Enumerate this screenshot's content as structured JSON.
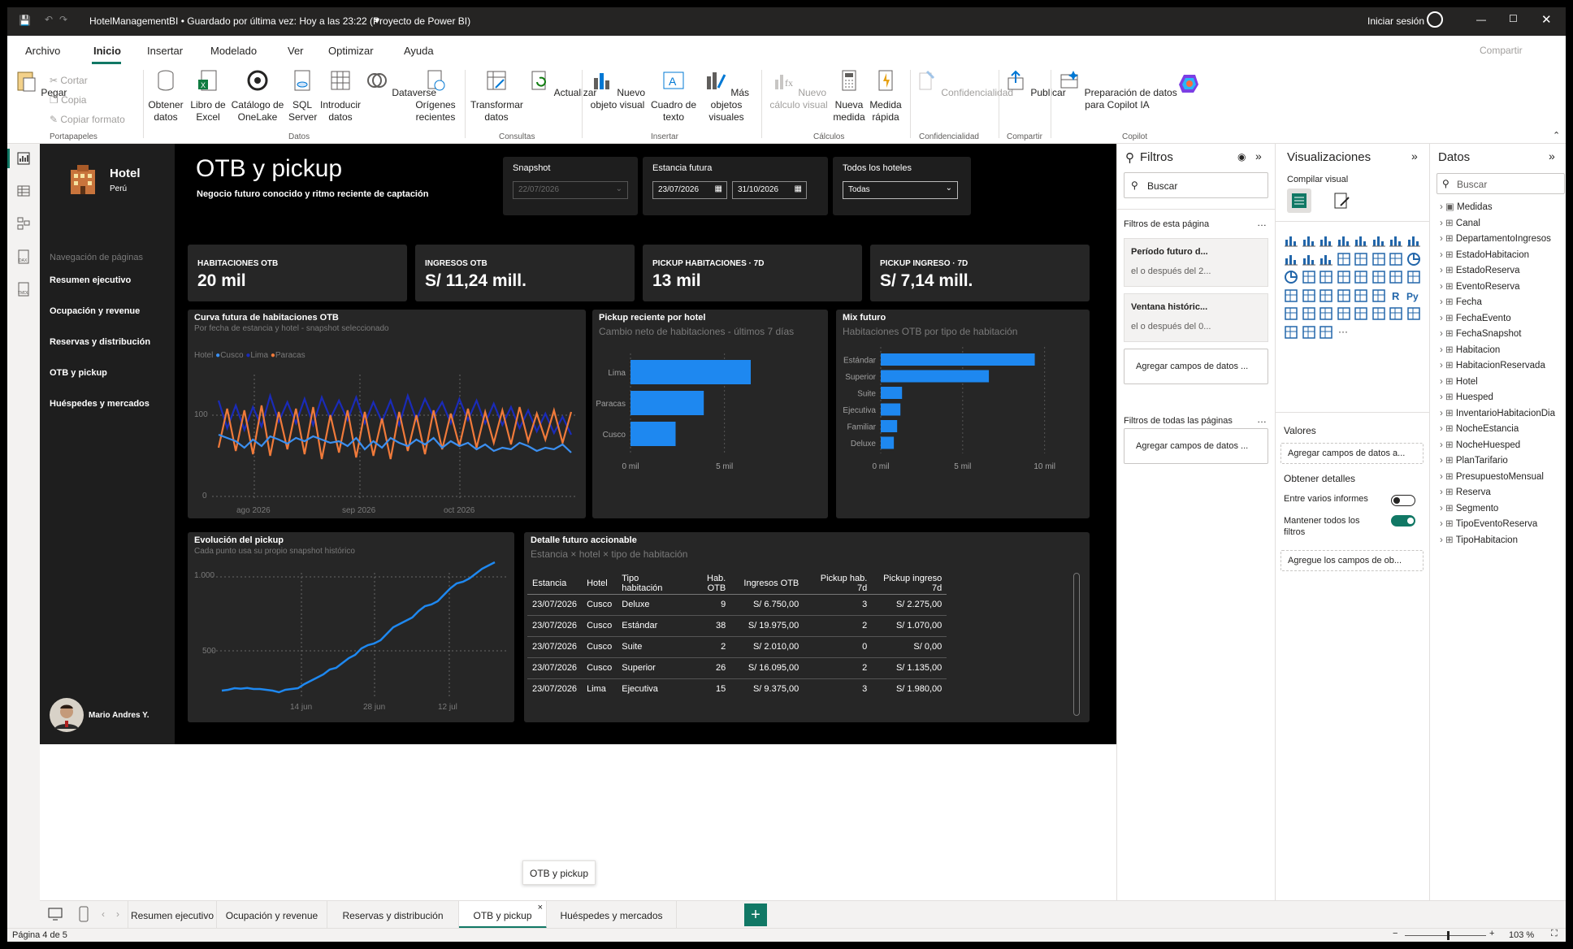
{
  "titlebar": {
    "title": "HotelManagementBI • Guardado por última vez: Hoy a las 23:22 (Proyecto de Power BI)",
    "signin": "Iniciar sesión"
  },
  "menu": {
    "items": [
      "Archivo",
      "Inicio",
      "Insertar",
      "Modelado",
      "Ver",
      "Optimizar",
      "Ayuda"
    ],
    "active": "Inicio",
    "share": "Compartir"
  },
  "ribbon": {
    "pegar": "Pegar",
    "cortar": "Cortar",
    "copia": "Copia",
    "copiar_formato": "Copiar formato",
    "obtener": "Obtener datos",
    "excel": "Libro de Excel",
    "onelake": "Catálogo de OneLake",
    "sql": "SQL Server",
    "introducir": "Introducir datos",
    "dataverse": "Dataverse",
    "origenes": "Orígenes recientes",
    "transformar": "Transformar datos",
    "actualizar": "Actualizar",
    "nuevo_objeto": "Nuevo objeto visual",
    "cuadro": "Cuadro de texto",
    "mas": "Más objetos visuales",
    "nuevo_calculo": "Nuevo cálculo visual",
    "nueva_medida": "Nueva medida",
    "medida_rapida": "Medida rápida",
    "confidencialidad": "Confidencialidad",
    "publicar": "Publicar",
    "preparacion": "Preparación de datos para Copilot IA",
    "groups": [
      "Portapapeles",
      "Datos",
      "Consultas",
      "Insertar",
      "Cálculos",
      "Confidencialidad",
      "Compartir",
      "Copilot"
    ]
  },
  "report": {
    "brand": "Hotel",
    "country": "Perú",
    "title": "OTB y pickup",
    "subtitle": "Negocio futuro conocido y ritmo reciente de captación",
    "nav_header": "Navegación de páginas",
    "nav": [
      "Resumen ejecutivo",
      "Ocupación y revenue",
      "Reservas y distribución",
      "OTB y pickup",
      "Huéspedes y mercados"
    ],
    "user": "Mario Andres Y.",
    "slicers": {
      "snapshot_label": "Snapshot",
      "snapshot_value": "22/07/2026",
      "estancia_label": "Estancia futura",
      "from": "23/07/2026",
      "to": "31/10/2026",
      "hoteles_label": "Todos los hoteles",
      "hoteles_value": "Todas"
    },
    "kpis": [
      {
        "label": "HABITACIONES OTB",
        "value": "20 mil"
      },
      {
        "label": "INGRESOS OTB",
        "value": "S/ 11,24 mill."
      },
      {
        "label": "PICKUP HABITACIONES · 7D",
        "value": "13 mil"
      },
      {
        "label": "PICKUP INGRESO · 7D",
        "value": "S/ 7,14 mill."
      }
    ],
    "curve": {
      "title": "Curva futura de habitaciones OTB",
      "subtitle": "Por fecha de estancia y hotel - snapshot seleccionado",
      "legend_title": "Hotel",
      "legend": [
        "Cusco",
        "Lima",
        "Paracas"
      ],
      "yticks": [
        "100",
        "0"
      ],
      "xticks": [
        "ago 2026",
        "sep 2026",
        "oct 2026"
      ]
    },
    "pickup_hotel": {
      "title": "Pickup reciente por hotel",
      "subtitle": "Cambio neto de habitaciones - últimos 7 días",
      "xticks": [
        "0 mil",
        "5 mil"
      ]
    },
    "mix": {
      "title": "Mix futuro",
      "subtitle": "Habitaciones OTB por tipo de habitación",
      "xticks": [
        "0 mil",
        "5 mil",
        "10 mil"
      ]
    },
    "evolucion": {
      "title": "Evolución del pickup",
      "subtitle": "Cada punto usa su propio snapshot histórico",
      "yticks": [
        "1.000",
        "500"
      ],
      "xticks": [
        "14 jun",
        "28 jun",
        "12 jul"
      ]
    },
    "detalle": {
      "title": "Detalle futuro accionable",
      "subtitle": "Estancia × hotel × tipo de habitación",
      "columns": [
        "Estancia",
        "Hotel",
        "Tipo habitación",
        "Hab. OTB",
        "Ingresos OTB",
        "Pickup hab. 7d",
        "Pickup ingreso 7d"
      ],
      "rows": [
        [
          "23/07/2026",
          "Cusco",
          "Deluxe",
          "9",
          "S/ 6.750,00",
          "3",
          "S/ 2.275,00"
        ],
        [
          "23/07/2026",
          "Cusco",
          "Estándar",
          "38",
          "S/ 19.975,00",
          "2",
          "S/ 1.070,00"
        ],
        [
          "23/07/2026",
          "Cusco",
          "Suite",
          "2",
          "S/ 2.010,00",
          "0",
          "S/ 0,00"
        ],
        [
          "23/07/2026",
          "Cusco",
          "Superior",
          "26",
          "S/ 16.095,00",
          "2",
          "S/ 1.135,00"
        ],
        [
          "23/07/2026",
          "Lima",
          "Ejecutiva",
          "15",
          "S/ 9.375,00",
          "3",
          "S/ 1.980,00"
        ]
      ]
    }
  },
  "chart_data": [
    {
      "type": "bar",
      "title": "Pickup reciente por hotel",
      "categories": [
        "Lima",
        "Paracas",
        "Cusco"
      ],
      "values": [
        6.4,
        3.9,
        2.4
      ],
      "xlim": [
        0,
        8
      ]
    },
    {
      "type": "bar",
      "title": "Mix futuro",
      "categories": [
        "Estándar",
        "Superior",
        "Suite",
        "Ejecutiva",
        "Familiar",
        "Deluxe"
      ],
      "values": [
        9.4,
        6.6,
        1.3,
        1.2,
        1.0,
        0.8
      ],
      "xlim": [
        0,
        12
      ]
    },
    {
      "type": "line",
      "title": "Evolución del pickup",
      "y": [
        210,
        215,
        225,
        222,
        226,
        220,
        220,
        215,
        210,
        200,
        215,
        220,
        225,
        250,
        270,
        290,
        310,
        340,
        350,
        380,
        410,
        430,
        470,
        490,
        500,
        520,
        560,
        600,
        620,
        640,
        660,
        700,
        730,
        740,
        760,
        800,
        840,
        870,
        880,
        900,
        930,
        960,
        980,
        1000
      ],
      "ylim": [
        0,
        1100
      ]
    },
    {
      "type": "line",
      "title": "Curva futura de habitaciones OTB",
      "series": [
        {
          "name": "Cusco",
          "values": [
            76,
            72,
            68,
            60,
            70,
            62,
            74,
            70,
            65,
            72,
            68,
            74,
            70,
            66,
            68,
            62,
            72,
            58,
            68,
            60,
            72,
            66,
            62,
            70,
            64,
            72,
            60,
            68,
            62,
            66,
            58,
            64,
            56,
            60,
            58,
            66,
            62,
            56,
            60,
            58,
            64,
            54
          ]
        },
        {
          "name": "Lima",
          "values": [
            118,
            84,
            112,
            82,
            110,
            86,
            124,
            92,
            116,
            90,
            120,
            88,
            122,
            96,
            118,
            94,
            122,
            90,
            116,
            92,
            118,
            88,
            124,
            94,
            120,
            98,
            116,
            90,
            120,
            94,
            118,
            90,
            114,
            88,
            110,
            84,
            106,
            80,
            102,
            78,
            98,
            76
          ]
        },
        {
          "name": "Paracas",
          "values": [
            60,
            108,
            56,
            106,
            52,
            112,
            50,
            104,
            58,
            108,
            52,
            110,
            46,
            100,
            54,
            106,
            48,
            104,
            50,
            96,
            46,
            104,
            56,
            100,
            52,
            106,
            58,
            102,
            62,
            108,
            60,
            104,
            66,
            106,
            64,
            110,
            68,
            102,
            70,
            106,
            66,
            104
          ]
        }
      ],
      "ylim": [
        0,
        150
      ]
    }
  ],
  "filters": {
    "title": "Filtros",
    "search": "Buscar",
    "page_header": "Filtros de esta página",
    "f1_title": "Período futuro d...",
    "f1_value": "el o después del 2...",
    "f2_title": "Ventana históric...",
    "f2_value": "el o después del 0...",
    "add": "Agregar campos de datos ...",
    "all_header": "Filtros de todas las páginas",
    "add2": "Agregar campos de datos ..."
  },
  "viz": {
    "title": "Visualizaciones",
    "build": "Compilar visual",
    "valores": "Valores",
    "valores_add": "Agregar campos de datos a...",
    "detalles": "Obtener detalles",
    "entre": "Entre varios informes",
    "mantener": "Mantener todos los filtros",
    "agregue": "Agregue los campos de ob..."
  },
  "datos": {
    "title": "Datos",
    "search": "Buscar",
    "items": [
      "Medidas",
      "Canal",
      "DepartamentoIngresos",
      "EstadoHabitacion",
      "EstadoReserva",
      "EventoReserva",
      "Fecha",
      "FechaEvento",
      "FechaSnapshot",
      "Habitacion",
      "HabitacionReservada",
      "Hotel",
      "Huesped",
      "InventarioHabitacionDia",
      "NocheEstancia",
      "NocheHuesped",
      "PlanTarifario",
      "PresupuestoMensual",
      "Reserva",
      "Segmento",
      "TipoEventoReserva",
      "TipoHabitacion"
    ]
  },
  "tabs": {
    "items": [
      "Resumen ejecutivo",
      "Ocupación y revenue",
      "Reservas y distribución",
      "OTB y pickup",
      "Huéspedes y mercados"
    ],
    "active": "OTB y pickup",
    "tooltip": "OTB y pickup"
  },
  "status": {
    "page": "Página 4 de 5",
    "zoom": "103 %"
  },
  "colors": {
    "accent": "#0078d4",
    "cusco": "#3b8ff0",
    "lima": "#1a2bb8",
    "paracas": "#f07a3a",
    "bar": "#1e88f0",
    "green": "#107c10"
  }
}
